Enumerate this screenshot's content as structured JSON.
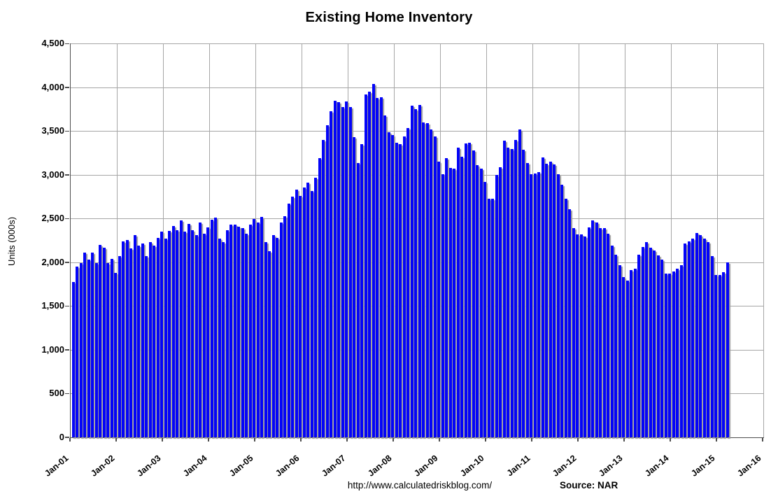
{
  "title": "Existing Home Inventory",
  "y_axis": {
    "label": "Units (000s)",
    "tick_labels": [
      "4,500",
      "4,000",
      "3,500",
      "3,000",
      "2,500",
      "2,000",
      "1,500",
      "1,000",
      "500",
      "0"
    ],
    "max": 4500,
    "step": 500
  },
  "x_axis": {
    "tick_labels": [
      "Jan-01",
      "Jan-02",
      "Jan-03",
      "Jan-04",
      "Jan-05",
      "Jan-06",
      "Jan-07",
      "Jan-08",
      "Jan-09",
      "Jan-10",
      "Jan-11",
      "Jan-12",
      "Jan-13",
      "Jan-14",
      "Jan-15",
      "Jan-16"
    ]
  },
  "footer": {
    "url": "http://www.calculatedriskblog.com/",
    "source": "Source: NAR"
  },
  "colors": {
    "bar": "#0404f8",
    "bar_shadow": "#9a9a9a",
    "gridline": "#a6a6a6",
    "axis": "#4d4d4d",
    "text": "#000000",
    "background": "#ffffff"
  },
  "chart_data": {
    "type": "bar",
    "title": "Existing Home Inventory",
    "xlabel": "",
    "ylabel": "Units (000s)",
    "ylim": [
      0,
      4500
    ],
    "grid": true,
    "legend": "none",
    "frequency": "monthly",
    "start_month": "2001-01",
    "end_month": "2015-03",
    "x_axis_span_months": 180,
    "values": [
      1780,
      1950,
      1990,
      2110,
      2030,
      2110,
      1990,
      2200,
      2170,
      1990,
      2040,
      1880,
      2070,
      2240,
      2260,
      2160,
      2310,
      2190,
      2220,
      2070,
      2230,
      2190,
      2280,
      2355,
      2275,
      2360,
      2420,
      2365,
      2480,
      2350,
      2440,
      2365,
      2310,
      2460,
      2330,
      2400,
      2490,
      2510,
      2270,
      2230,
      2365,
      2430,
      2435,
      2410,
      2390,
      2330,
      2435,
      2495,
      2455,
      2520,
      2230,
      2130,
      2310,
      2280,
      2460,
      2530,
      2670,
      2750,
      2830,
      2760,
      2860,
      2910,
      2820,
      2970,
      3190,
      3400,
      3570,
      3730,
      3845,
      3830,
      3775,
      3840,
      3780,
      3430,
      3140,
      3350,
      3920,
      3950,
      4040,
      3880,
      3890,
      3680,
      3490,
      3460,
      3365,
      3355,
      3440,
      3540,
      3790,
      3750,
      3800,
      3600,
      3590,
      3520,
      3440,
      3150,
      3010,
      3190,
      3080,
      3070,
      3310,
      3210,
      3360,
      3370,
      3280,
      3110,
      3075,
      2920,
      2730,
      2730,
      3000,
      3090,
      3390,
      3310,
      3300,
      3400,
      3520,
      3290,
      3140,
      3010,
      3020,
      3030,
      3200,
      3130,
      3150,
      3120,
      3010,
      2890,
      2730,
      2610,
      2390,
      2320,
      2320,
      2300,
      2400,
      2480,
      2460,
      2390,
      2390,
      2330,
      2190,
      2090,
      1970,
      1830,
      1790,
      1910,
      1930,
      2090,
      2180,
      2230,
      2170,
      2140,
      2080,
      2030,
      1870,
      1875,
      1900,
      1930,
      1965,
      2220,
      2240,
      2275,
      2340,
      2315,
      2270,
      2230,
      2070,
      1860,
      1860,
      1890,
      2000
    ]
  }
}
